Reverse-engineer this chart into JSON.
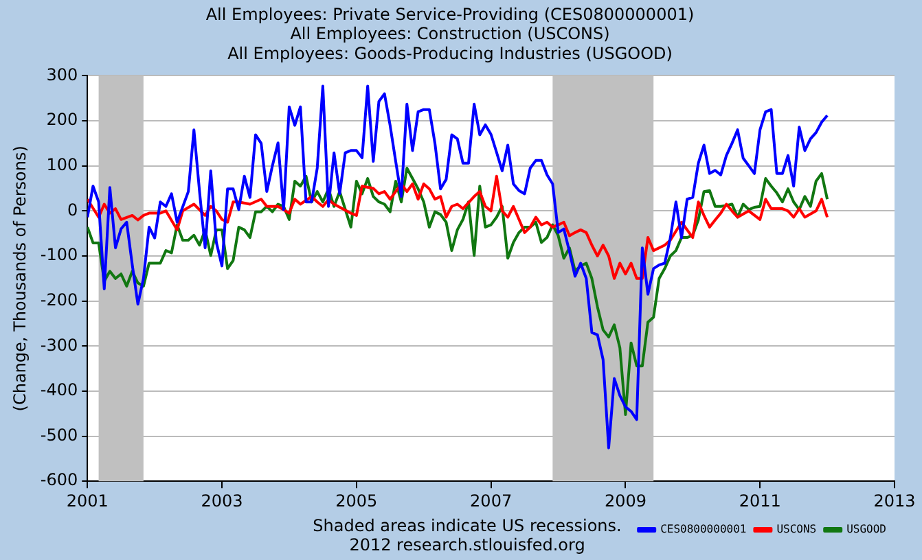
{
  "chart_data": {
    "type": "line",
    "title": [
      "All Employees: Private Service-Providing (CES0800000001)",
      "All Employees: Construction (USCONS)",
      "All Employees: Goods-Producing Industries (USGOOD)"
    ],
    "ylabel": "(Change, Thousands of Persons)",
    "xlim": [
      "2001",
      "2013"
    ],
    "xticks": [
      "2001",
      "2003",
      "2005",
      "2007",
      "2009",
      "2011",
      "2013"
    ],
    "ylim": [
      -600,
      300
    ],
    "yticks": [
      -600,
      -500,
      -400,
      -300,
      -200,
      -100,
      0,
      100,
      200,
      300
    ],
    "grid": "y",
    "legend": "bottom right",
    "marker": "none",
    "line_style": "solid",
    "bands": [
      {
        "axis": "x",
        "from": "2001-03",
        "to": "2001-11",
        "color": "#c0c0c0"
      },
      {
        "axis": "x",
        "from": "2007-12",
        "to": "2009-06",
        "color": "#c0c0c0"
      }
    ],
    "annotations": [
      "Shaded areas indicate US recessions.",
      "2012 research.stlouisfed.org"
    ],
    "series": [
      {
        "name": "CES0800000001",
        "color": "#0000ff",
        "x": [
          "2001-01",
          "2001-02",
          "2001-03",
          "2001-04",
          "2001-05",
          "2001-06",
          "2001-07",
          "2001-08",
          "2001-09",
          "2001-10",
          "2001-11",
          "2001-12",
          "2002-01",
          "2002-02",
          "2002-03",
          "2002-04",
          "2002-05",
          "2002-07",
          "2002-08",
          "2002-09",
          "2002-10",
          "2002-11",
          "2002-12",
          "2003-01",
          "2003-02",
          "2003-03",
          "2003-04",
          "2003-05",
          "2003-06",
          "2003-07",
          "2003-08",
          "2003-09",
          "2003-10",
          "2003-11",
          "2003-12",
          "2004-01",
          "2004-02",
          "2004-03",
          "2004-04",
          "2004-05",
          "2004-06",
          "2004-07",
          "2004-08",
          "2004-09",
          "2004-10",
          "2004-11",
          "2004-12",
          "2005-01",
          "2005-02",
          "2005-03",
          "2005-04",
          "2005-05",
          "2005-06",
          "2005-07",
          "2005-08",
          "2005-09",
          "2005-10",
          "2005-11",
          "2005-12",
          "2006-01",
          "2006-02",
          "2006-03",
          "2006-04",
          "2006-05",
          "2006-06",
          "2006-07",
          "2006-08",
          "2006-09",
          "2006-10",
          "2006-11",
          "2006-12",
          "2007-01",
          "2007-02",
          "2007-03",
          "2007-04",
          "2007-05",
          "2007-06",
          "2007-07",
          "2007-08",
          "2007-09",
          "2007-10",
          "2007-11",
          "2007-12",
          "2008-01",
          "2008-02",
          "2008-03",
          "2008-04",
          "2008-05",
          "2008-06",
          "2008-07",
          "2008-08",
          "2008-09",
          "2008-10",
          "2008-11",
          "2008-12",
          "2009-01",
          "2009-02",
          "2009-03",
          "2009-04",
          "2009-05",
          "2009-06",
          "2009-07",
          "2009-08",
          "2009-09",
          "2009-10",
          "2009-11",
          "2009-12",
          "2010-01",
          "2010-02",
          "2010-03",
          "2010-04",
          "2010-05",
          "2010-06",
          "2010-07",
          "2010-08",
          "2010-09",
          "2010-10",
          "2010-11",
          "2010-12",
          "2011-01",
          "2011-02",
          "2011-03",
          "2011-04",
          "2011-05",
          "2011-06",
          "2011-07",
          "2011-08",
          "2011-09",
          "2011-10",
          "2011-11",
          "2011-12",
          "2012-01"
        ],
        "values": [
          -14,
          55,
          20,
          -173,
          52,
          -82,
          -40,
          -25,
          -120,
          -207,
          -150,
          -36,
          -60,
          20,
          10,
          38,
          -25,
          43,
          180,
          43,
          -82,
          89,
          -70,
          -122,
          49,
          49,
          3,
          77,
          30,
          169,
          150,
          43,
          100,
          151,
          3,
          231,
          190,
          231,
          20,
          20,
          95,
          277,
          10,
          129,
          38,
          129,
          134,
          134,
          118,
          277,
          110,
          243,
          260,
          190,
          110,
          32,
          237,
          134,
          220,
          225,
          225,
          150,
          49,
          70,
          169,
          160,
          106,
          106,
          237,
          169,
          191,
          170,
          130,
          89,
          146,
          60,
          45,
          38,
          95,
          112,
          112,
          80,
          60,
          -48,
          -40,
          -90,
          -145,
          -116,
          -150,
          -270,
          -275,
          -330,
          -526,
          -372,
          -410,
          -435,
          -445,
          -463,
          -82,
          -185,
          -128,
          -120,
          -116,
          -60,
          20,
          -60,
          26,
          30,
          106,
          146,
          83,
          90,
          80,
          123,
          150,
          180,
          117,
          100,
          83,
          180,
          220,
          225,
          83,
          83,
          123,
          55,
          186,
          134,
          160,
          174,
          197,
          212
        ]
      },
      {
        "name": "USCONS",
        "color": "#ff0000",
        "x": [
          "2001-01",
          "2001-03",
          "2001-04",
          "2001-05",
          "2001-06",
          "2001-07",
          "2001-09",
          "2001-10",
          "2001-11",
          "2001-12",
          "2002-02",
          "2002-03",
          "2002-05",
          "2002-06",
          "2002-08",
          "2002-10",
          "2002-11",
          "2002-12",
          "2003-01",
          "2003-02",
          "2003-03",
          "2003-04",
          "2003-06",
          "2003-08",
          "2003-09",
          "2003-11",
          "2004-01",
          "2004-02",
          "2004-03",
          "2004-05",
          "2004-06",
          "2004-07",
          "2004-08",
          "2004-09",
          "2004-12",
          "2005-01",
          "2005-02",
          "2005-04",
          "2005-05",
          "2005-06",
          "2005-07",
          "2005-08",
          "2005-09",
          "2005-10",
          "2005-11",
          "2005-12",
          "2006-01",
          "2006-02",
          "2006-03",
          "2006-04",
          "2006-05",
          "2006-06",
          "2006-07",
          "2006-08",
          "2006-10",
          "2006-11",
          "2006-12",
          "2007-01",
          "2007-02",
          "2007-03",
          "2007-04",
          "2007-05",
          "2007-06",
          "2007-07",
          "2007-08",
          "2007-09",
          "2007-10",
          "2007-11",
          "2007-12",
          "2008-01",
          "2008-02",
          "2008-03",
          "2008-04",
          "2008-05",
          "2008-06",
          "2008-07",
          "2008-08",
          "2008-09",
          "2008-10",
          "2008-11",
          "2008-12",
          "2009-01",
          "2009-02",
          "2009-03",
          "2009-04",
          "2009-05",
          "2009-06",
          "2009-08",
          "2009-09",
          "2009-11",
          "2010-01",
          "2010-02",
          "2010-03",
          "2010-04",
          "2010-05",
          "2010-06",
          "2010-07",
          "2010-08",
          "2010-09",
          "2010-11",
          "2011-01",
          "2011-02",
          "2011-03",
          "2011-05",
          "2011-06",
          "2011-07",
          "2011-08",
          "2011-09",
          "2011-11",
          "2011-12",
          "2012-01"
        ],
        "values": [
          26,
          -14,
          15,
          -5,
          5,
          -19,
          -10,
          -20,
          -10,
          -5,
          -5,
          0,
          -42,
          0,
          15,
          -10,
          10,
          0,
          -19,
          -25,
          20,
          20,
          15,
          26,
          10,
          10,
          -5,
          26,
          15,
          32,
          20,
          10,
          25,
          15,
          -5,
          -10,
          55,
          50,
          38,
          43,
          26,
          43,
          60,
          43,
          60,
          26,
          60,
          49,
          26,
          32,
          -14,
          10,
          15,
          5,
          32,
          43,
          10,
          0,
          77,
          0,
          -14,
          10,
          -19,
          -48,
          -36,
          -14,
          -31,
          -25,
          -36,
          -31,
          -25,
          -55,
          -48,
          -42,
          -48,
          -76,
          -100,
          -76,
          -100,
          -150,
          -116,
          -140,
          -116,
          -150,
          -150,
          -59,
          -88,
          -76,
          -65,
          -25,
          -59,
          20,
          -10,
          -36,
          -20,
          -5,
          15,
          0,
          -14,
          0,
          -19,
          26,
          5,
          5,
          0,
          -14,
          5,
          -14,
          0,
          26,
          -14
        ]
      },
      {
        "name": "USGOOD",
        "color": "#117711",
        "x": [
          "2001-01",
          "2001-02",
          "2001-03",
          "2001-04",
          "2001-05",
          "2001-06",
          "2001-07",
          "2001-08",
          "2001-09",
          "2001-10",
          "2001-11",
          "2001-12",
          "2002-02",
          "2002-03",
          "2002-04",
          "2002-05",
          "2002-06",
          "2002-07",
          "2002-08",
          "2002-09",
          "2002-10",
          "2002-11",
          "2002-12",
          "2003-01",
          "2003-02",
          "2003-03",
          "2003-04",
          "2003-05",
          "2003-06",
          "2003-07",
          "2003-08",
          "2003-09",
          "2003-10",
          "2003-11",
          "2003-12",
          "2004-01",
          "2004-02",
          "2004-03",
          "2004-04",
          "2004-05",
          "2004-06",
          "2004-07",
          "2004-08",
          "2004-09",
          "2004-10",
          "2004-12",
          "2005-01",
          "2005-02",
          "2005-03",
          "2005-04",
          "2005-05",
          "2005-06",
          "2005-07",
          "2005-08",
          "2005-09",
          "2005-10",
          "2005-11",
          "2005-12",
          "2006-01",
          "2006-02",
          "2006-03",
          "2006-04",
          "2006-05",
          "2006-06",
          "2006-07",
          "2006-08",
          "2006-09",
          "2006-10",
          "2006-11",
          "2006-12",
          "2007-01",
          "2007-02",
          "2007-03",
          "2007-04",
          "2007-05",
          "2007-06",
          "2007-07",
          "2007-08",
          "2007-09",
          "2007-10",
          "2007-11",
          "2007-12",
          "2008-01",
          "2008-02",
          "2008-03",
          "2008-04",
          "2008-05",
          "2008-06",
          "2008-07",
          "2008-08",
          "2008-09",
          "2008-10",
          "2008-11",
          "2008-12",
          "2009-01",
          "2009-02",
          "2009-03",
          "2009-04",
          "2009-05",
          "2009-06",
          "2009-07",
          "2009-08",
          "2009-09",
          "2009-10",
          "2009-11",
          "2009-12",
          "2010-01",
          "2010-02",
          "2010-03",
          "2010-04",
          "2010-05",
          "2010-06",
          "2010-07",
          "2010-08",
          "2010-09",
          "2010-10",
          "2010-11",
          "2010-12",
          "2011-01",
          "2011-02",
          "2011-03",
          "2011-04",
          "2011-05",
          "2011-06",
          "2011-07",
          "2011-08",
          "2011-09",
          "2011-10",
          "2011-11",
          "2011-12",
          "2012-01"
        ],
        "values": [
          -36,
          -71,
          -71,
          -156,
          -134,
          -150,
          -140,
          -167,
          -134,
          -160,
          -167,
          -116,
          -116,
          -88,
          -93,
          -31,
          -65,
          -65,
          -54,
          -76,
          -42,
          -99,
          -42,
          -42,
          -128,
          -110,
          -36,
          -42,
          -59,
          -2,
          -2,
          10,
          -2,
          15,
          10,
          -19,
          66,
          55,
          77,
          20,
          43,
          20,
          49,
          10,
          43,
          -36,
          66,
          38,
          72,
          32,
          20,
          15,
          -2,
          66,
          20,
          95,
          72,
          49,
          20,
          -36,
          -2,
          -8,
          -25,
          -88,
          -42,
          -19,
          20,
          -99,
          55,
          -36,
          -31,
          -14,
          10,
          -105,
          -70,
          -48,
          -36,
          -36,
          -25,
          -70,
          -59,
          -31,
          -55,
          -105,
          -82,
          -133,
          -122,
          -116,
          -150,
          -213,
          -264,
          -280,
          -253,
          -304,
          -452,
          -293,
          -344,
          -344,
          -247,
          -236,
          -150,
          -128,
          -100,
          -88,
          -59,
          -59,
          -54,
          -20,
          43,
          45,
          10,
          10,
          12,
          15,
          -14,
          15,
          3,
          8,
          10,
          72,
          55,
          40,
          20,
          49,
          20,
          3,
          32,
          10,
          66,
          83,
          26
        ]
      }
    ]
  }
}
